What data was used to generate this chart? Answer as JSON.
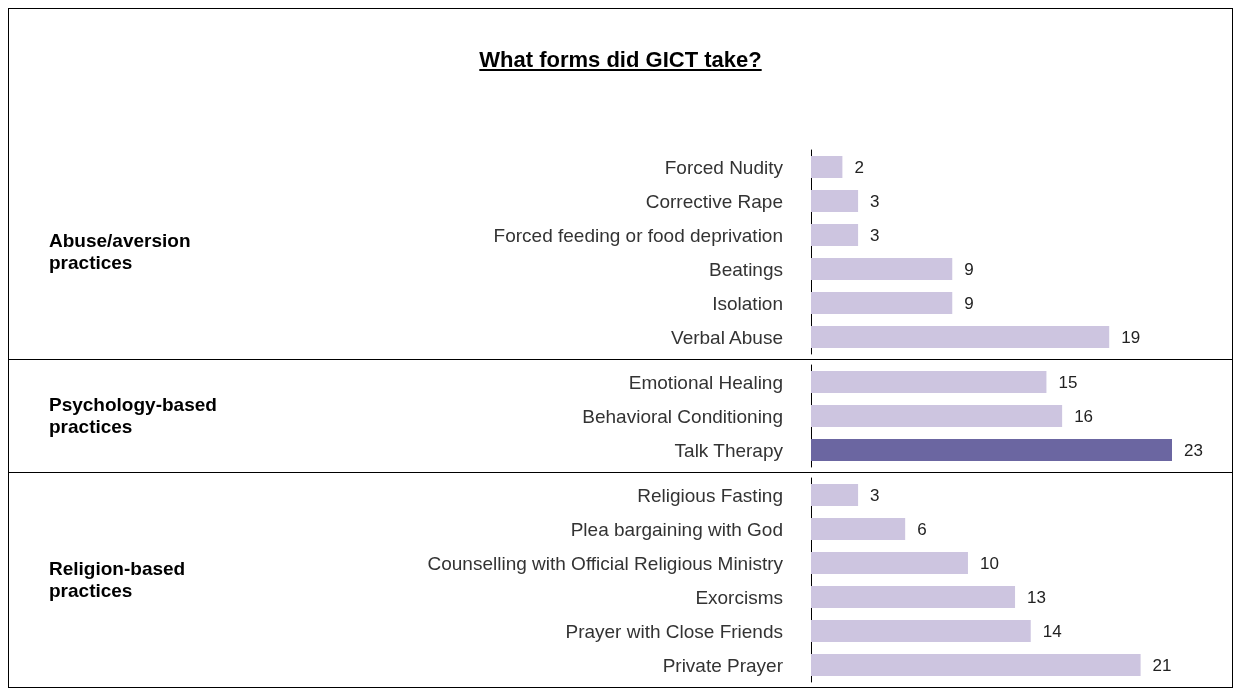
{
  "chart_data": [
    {
      "type": "bar",
      "orientation": "horizontal",
      "title": "What forms did GICT take?",
      "ylabel": "Abuse/aversion practices",
      "categories": [
        "Forced Nudity",
        "Corrective Rape",
        "Forced feeding or food deprivation",
        "Beatings",
        "Isolation",
        "Verbal Abuse"
      ],
      "values": [
        2,
        3,
        3,
        9,
        9,
        19
      ],
      "colors": [
        "#cdc5e0",
        "#cdc5e0",
        "#cdc5e0",
        "#cdc5e0",
        "#cdc5e0",
        "#cdc5e0"
      ],
      "data_labels": true
    },
    {
      "type": "bar",
      "orientation": "horizontal",
      "ylabel": "Psychology-based practices",
      "categories": [
        "Emotional Healing",
        "Behavioral Conditioning",
        "Talk Therapy"
      ],
      "values": [
        15,
        16,
        23
      ],
      "colors": [
        "#cdc5e0",
        "#cdc5e0",
        "#6b66a1"
      ],
      "data_labels": true
    },
    {
      "type": "bar",
      "orientation": "horizontal",
      "ylabel": "Religion-based practices",
      "categories": [
        "Religious Fasting",
        "Plea bargaining with God",
        "Counselling with Official Religious Ministry",
        "Exorcisms",
        "Prayer with Close Friends",
        "Private Prayer"
      ],
      "values": [
        3,
        6,
        10,
        13,
        14,
        21
      ],
      "colors": [
        "#cdc5e0",
        "#cdc5e0",
        "#cdc5e0",
        "#cdc5e0",
        "#cdc5e0",
        "#cdc5e0"
      ],
      "data_labels": true
    }
  ]
}
